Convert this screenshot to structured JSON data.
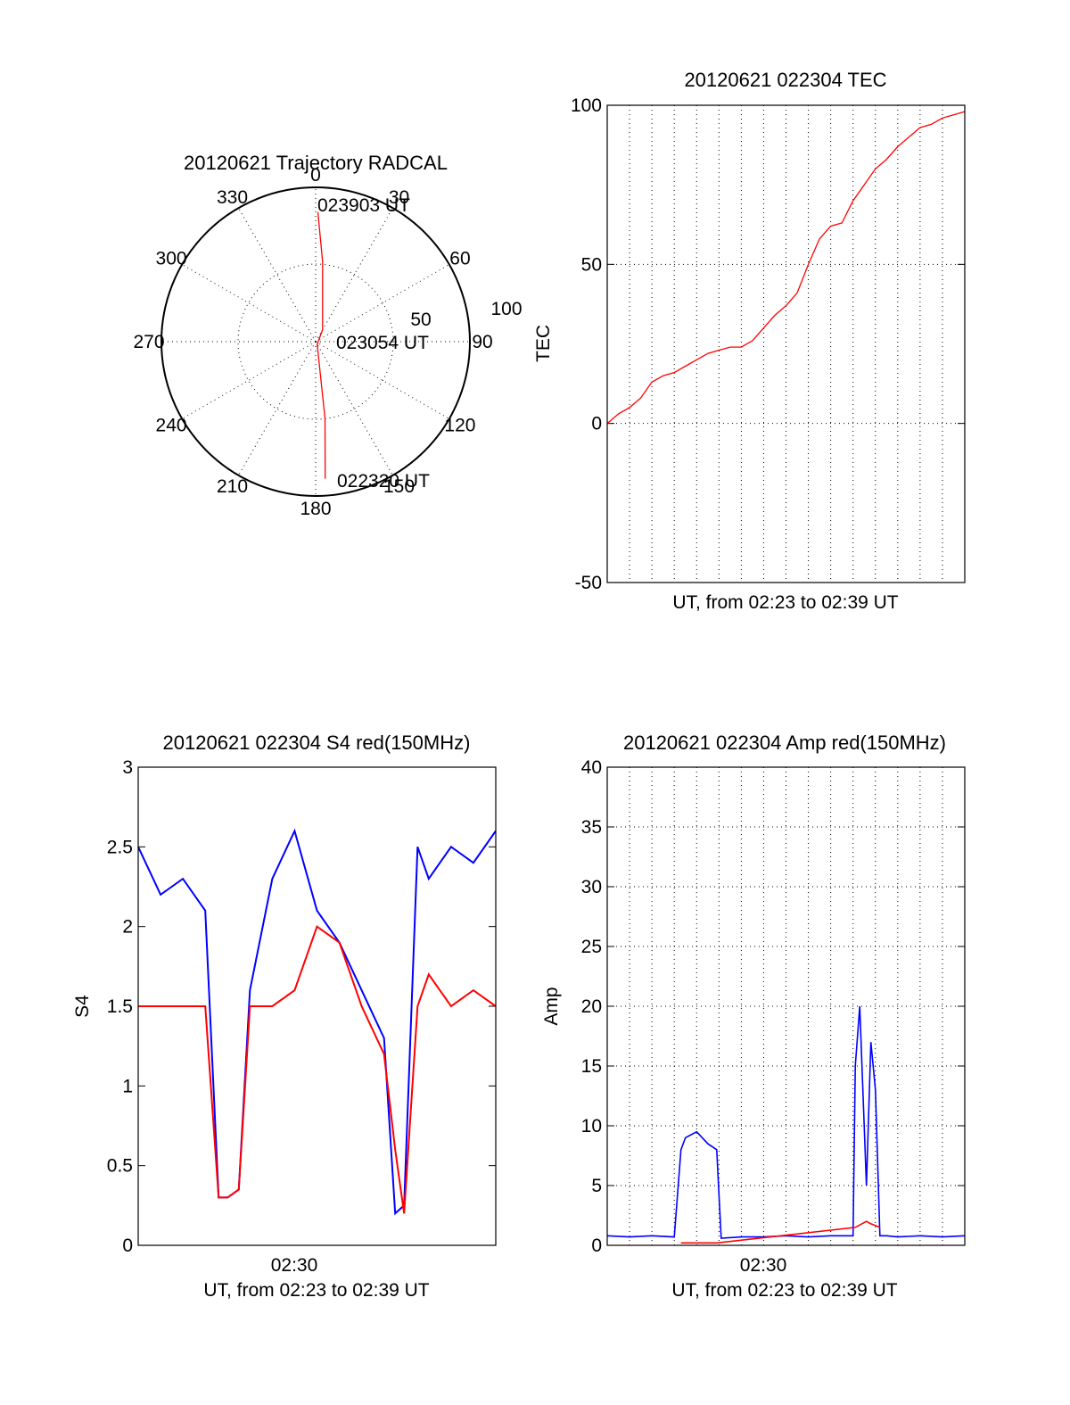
{
  "colors": {
    "red": "#ff0000",
    "blue": "#0000ff",
    "axis": "#000000"
  },
  "chart_data": [
    {
      "type": "scatter",
      "projection": "polar",
      "title": "20120621 Trajectory RADCAL",
      "angle_labels": [
        "0",
        "30",
        "60",
        "90",
        "120",
        "150",
        "180",
        "210",
        "240",
        "270",
        "300",
        "330"
      ],
      "radius_labels": [
        "50",
        "100"
      ],
      "rmax": 100,
      "trajectory": {
        "color": "#ff0000",
        "points": [
          {
            "az": 1,
            "el": 84,
            "label": "023903 UT"
          },
          {
            "az": 5,
            "el": 52
          },
          {
            "az": 30,
            "el": 9
          },
          {
            "az": 150,
            "el": 2,
            "label": "023054 UT"
          },
          {
            "az": 173,
            "el": 50
          },
          {
            "az": 176,
            "el": 89,
            "label": "022320 UT"
          }
        ]
      }
    },
    {
      "type": "line",
      "title": "20120621 022304 TEC",
      "xlabel": "UT, from 02:23 to 02:39 UT",
      "ylabel": "TEC",
      "ylim": [
        -50,
        100
      ],
      "yticks": [
        "-50",
        "0",
        "50",
        "100"
      ],
      "xlim": [
        0,
        16
      ],
      "series": [
        {
          "color": "#ff0000",
          "x": [
            0,
            0.5,
            1,
            1.5,
            2,
            2.5,
            3,
            3.5,
            4,
            4.5,
            5,
            5.5,
            6,
            6.5,
            7,
            7.5,
            8,
            8.5,
            9,
            9.5,
            10,
            10.5,
            11,
            11.5,
            12,
            12.5,
            13,
            13.5,
            14,
            14.5,
            15,
            15.5,
            16
          ],
          "y": [
            0,
            3,
            5,
            8,
            13,
            15,
            16,
            18,
            20,
            22,
            23,
            24,
            24,
            26,
            30,
            34,
            37,
            41,
            50,
            58,
            62,
            63,
            70,
            75,
            80,
            83,
            87,
            90,
            93,
            94,
            96,
            97,
            98
          ]
        }
      ]
    },
    {
      "type": "line",
      "title": "20120621 022304 S4 red(150MHz)",
      "xlabel": "UT, from 02:23 to 02:39 UT",
      "ylabel": "S4",
      "ylim": [
        0,
        3
      ],
      "yticks": [
        "0",
        "0.5",
        "1",
        "1.5",
        "2",
        "2.5",
        "3"
      ],
      "xticklabel": "02:30",
      "xlim": [
        0,
        16
      ],
      "series": [
        {
          "color": "#0000ff",
          "x": [
            0,
            1,
            2,
            3,
            3.6,
            4,
            4.5,
            5,
            6,
            7,
            8,
            9,
            10,
            11,
            11.5,
            11.9,
            12.5,
            13,
            14,
            15,
            16
          ],
          "y": [
            2.5,
            2.2,
            2.3,
            2.1,
            0.3,
            0.3,
            0.35,
            1.6,
            2.3,
            2.6,
            2.1,
            1.9,
            1.6,
            1.3,
            0.2,
            0.25,
            2.5,
            2.3,
            2.5,
            2.4,
            2.6
          ]
        },
        {
          "color": "#ff0000",
          "x": [
            0,
            1,
            2,
            3,
            3.6,
            4,
            4.5,
            5,
            6,
            7,
            8,
            9,
            10,
            11,
            11.5,
            11.9,
            12.5,
            13,
            14,
            15,
            16
          ],
          "y": [
            1.5,
            1.5,
            1.5,
            1.5,
            0.3,
            0.3,
            0.35,
            1.5,
            1.5,
            1.6,
            2.0,
            1.9,
            1.5,
            1.2,
            0.6,
            0.2,
            1.5,
            1.7,
            1.5,
            1.6,
            1.5
          ]
        }
      ]
    },
    {
      "type": "line",
      "title": "20120621 022304 Amp red(150MHz)",
      "xlabel": "UT, from 02:23 to 02:39 UT",
      "ylabel": "Amp",
      "ylim": [
        0,
        40
      ],
      "yticks": [
        "0",
        "5",
        "10",
        "15",
        "20",
        "25",
        "30",
        "35",
        "40"
      ],
      "xticklabel": "02:30",
      "xlim": [
        0,
        16
      ],
      "series": [
        {
          "color": "#0000ff",
          "x": [
            0,
            1,
            2,
            3,
            3.3,
            3.5,
            4,
            4.5,
            4.9,
            5.1,
            6,
            7,
            8,
            9,
            10,
            11,
            11.1,
            11.3,
            11.6,
            11.8,
            12,
            12.2,
            12.5,
            13,
            14,
            15,
            16
          ],
          "y": [
            0.8,
            0.7,
            0.8,
            0.7,
            8,
            9,
            9.5,
            8.5,
            8,
            0.6,
            0.7,
            0.7,
            0.8,
            0.7,
            0.8,
            0.8,
            15,
            20,
            5,
            17,
            13,
            0.8,
            0.8,
            0.7,
            0.8,
            0.7,
            0.8
          ]
        },
        {
          "color": "#ff0000",
          "x": [
            3.3,
            4.9,
            11.1,
            11.6,
            11.8,
            12.2
          ],
          "y": [
            0.2,
            0.2,
            1.5,
            2,
            1.8,
            1.5
          ]
        }
      ]
    }
  ],
  "texts": {
    "polar_title": "20120621 Trajectory RADCAL",
    "tec_title": "20120621 022304 TEC",
    "s4_title": "20120621 022304 S4 red(150MHz)",
    "amp_title": "20120621 022304 Amp red(150MHz)",
    "xlabel": "UT, from 02:23 to 02:39 UT",
    "tec_ylabel": "TEC",
    "s4_ylabel": "S4",
    "amp_ylabel": "Amp",
    "xtick_0230": "02:30",
    "traj_label_1": "023903 UT",
    "traj_label_2": "023054 UT",
    "traj_label_3": "022320 UT"
  }
}
